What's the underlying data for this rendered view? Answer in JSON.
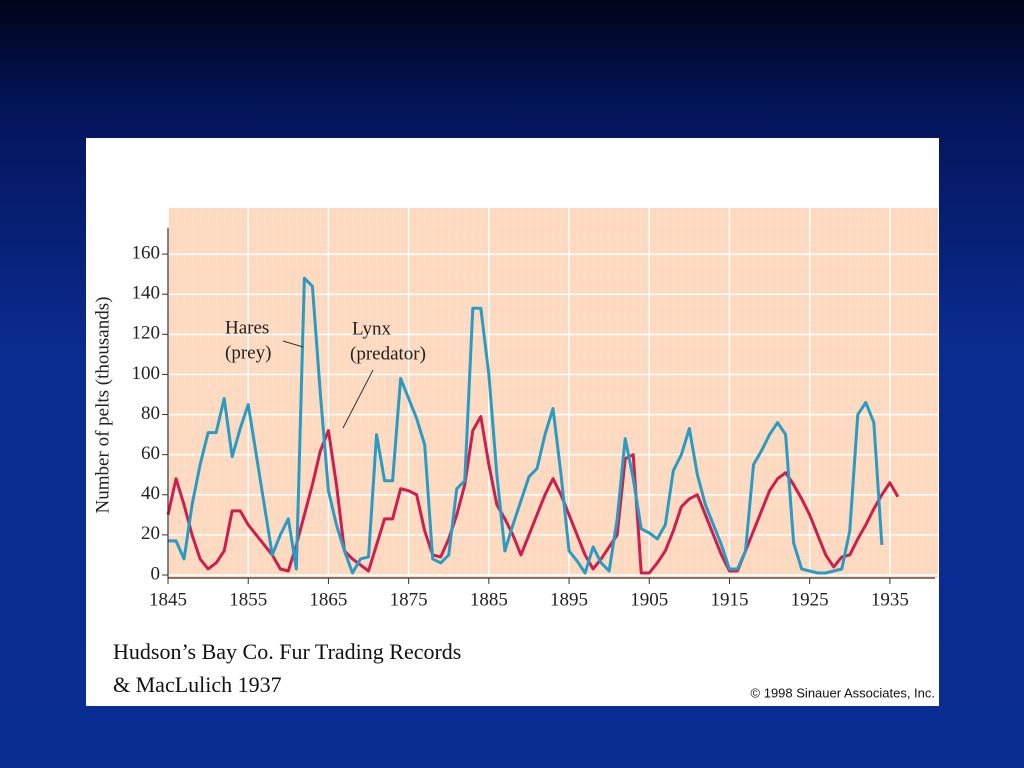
{
  "chart_data": {
    "type": "line",
    "y_label": "Number of pelts (thousands)",
    "x": [
      1845,
      1846,
      1847,
      1848,
      1849,
      1850,
      1851,
      1852,
      1853,
      1854,
      1855,
      1856,
      1857,
      1858,
      1859,
      1860,
      1861,
      1862,
      1863,
      1864,
      1865,
      1866,
      1867,
      1868,
      1869,
      1870,
      1871,
      1872,
      1873,
      1874,
      1875,
      1876,
      1877,
      1878,
      1879,
      1880,
      1881,
      1882,
      1883,
      1884,
      1885,
      1886,
      1887,
      1888,
      1889,
      1890,
      1891,
      1892,
      1893,
      1894,
      1895,
      1896,
      1897,
      1898,
      1899,
      1900,
      1901,
      1902,
      1903,
      1904,
      1905,
      1906,
      1907,
      1908,
      1909,
      1910,
      1911,
      1912,
      1913,
      1914,
      1915,
      1916,
      1917,
      1918,
      1919,
      1920,
      1921,
      1922,
      1923,
      1924,
      1925,
      1926,
      1927,
      1928,
      1929,
      1930,
      1931,
      1932,
      1933,
      1934,
      1935,
      1936
    ],
    "series": [
      {
        "name": "Hares",
        "role": "(prey)",
        "color": "#2a9cc4",
        "values": [
          17,
          17,
          8,
          35,
          55,
          71,
          71,
          88,
          59,
          73,
          85,
          60,
          35,
          10,
          20,
          28,
          3,
          148,
          144,
          90,
          42,
          25,
          12,
          1,
          8,
          9,
          70,
          47,
          47,
          98,
          88,
          78,
          65,
          8,
          6,
          10,
          43,
          47,
          133,
          133,
          100,
          50,
          12,
          25,
          37,
          49,
          53,
          70,
          83,
          50,
          12,
          7,
          1,
          14,
          6,
          2,
          28,
          68,
          48,
          23,
          21,
          18,
          25,
          52,
          60,
          73,
          50,
          35,
          25,
          15,
          3,
          3,
          12,
          55,
          62,
          70,
          76,
          70,
          16,
          3,
          2,
          1,
          1,
          2,
          3,
          22,
          80,
          86,
          76,
          15,
          null,
          null
        ]
      },
      {
        "name": "Lynx",
        "role": "(predator)",
        "color": "#cc1f4e",
        "values": [
          30,
          48,
          35,
          20,
          8,
          3,
          6,
          12,
          32,
          32,
          25,
          20,
          15,
          10,
          3,
          2,
          15,
          30,
          45,
          62,
          72,
          45,
          12,
          8,
          5,
          2,
          15,
          28,
          28,
          43,
          42,
          40,
          22,
          10,
          9,
          18,
          30,
          45,
          72,
          79,
          55,
          35,
          28,
          20,
          10,
          20,
          30,
          40,
          48,
          40,
          30,
          20,
          10,
          3,
          8,
          14,
          20,
          58,
          60,
          1,
          1,
          6,
          12,
          22,
          34,
          38,
          40,
          30,
          20,
          10,
          2,
          2,
          12,
          22,
          32,
          42,
          48,
          51,
          45,
          38,
          30,
          20,
          10,
          4,
          9,
          10,
          18,
          25,
          33,
          40,
          46,
          39
        ]
      }
    ],
    "xlim": [
      1844,
      1941
    ],
    "xticks": [
      1845,
      1855,
      1865,
      1875,
      1885,
      1895,
      1905,
      1915,
      1925,
      1935
    ],
    "ylim": [
      0,
      175
    ],
    "yticks": [
      0,
      20,
      40,
      60,
      80,
      100,
      120,
      140,
      160
    ],
    "grid": true,
    "source": [
      "Hudson’s Bay Co. Fur Trading Records",
      "& MacLulich 1937"
    ],
    "copyright": "© 1998 Sinauer Associates, Inc."
  }
}
